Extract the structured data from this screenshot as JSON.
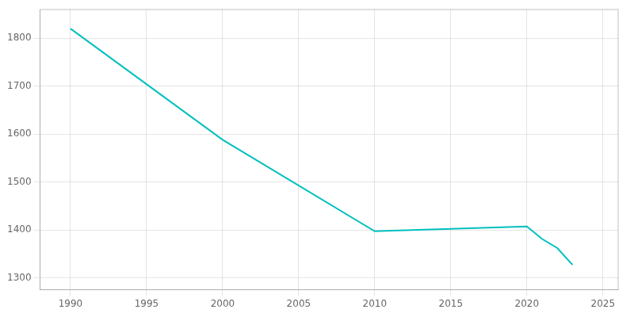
{
  "chart_data": {
    "type": "line",
    "x": [
      1990,
      2000,
      2010,
      2020,
      2021,
      2022,
      2023
    ],
    "values": [
      1820,
      1588,
      1397,
      1407,
      1381,
      1362,
      1327
    ],
    "color": "#00BFBF",
    "xlim": [
      1988,
      2026
    ],
    "ylim": [
      1275,
      1860
    ],
    "xticks": [
      1990,
      1995,
      2000,
      2005,
      2010,
      2015,
      2020,
      2025
    ],
    "yticks": [
      1300,
      1400,
      1500,
      1600,
      1700,
      1800
    ],
    "grid": true
  }
}
